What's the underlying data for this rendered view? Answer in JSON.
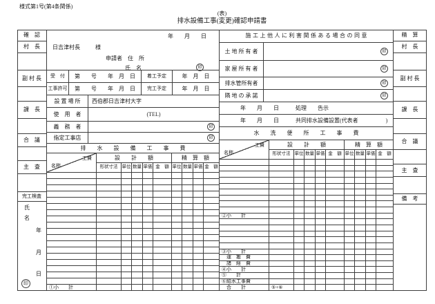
{
  "page": {
    "form_number": "様式第1号(第4条関係)",
    "side_label": "(表)",
    "title": "排水設備工事(変更)確認申請書"
  },
  "seals": {
    "glyph": "印"
  },
  "approval_left": {
    "header": "確　認",
    "mayor": "村　長",
    "deputy_mayor": "副 村 長",
    "section_chief": "課　長",
    "council": "合　議",
    "examiner": "主　査",
    "completion_label": "完工検査",
    "name_char_1": "氏",
    "name_char_2": "名",
    "year": "年",
    "month": "月",
    "day": "日"
  },
  "approval_right": {
    "header": "精　算",
    "mayor": "村　長",
    "deputy_mayor": "副 村 長",
    "section_chief": "課　長",
    "council": "合　議",
    "examiner": "主　査",
    "remarks": "備　考"
  },
  "application": {
    "date": "年　　月　　日",
    "addressee": "日吉津村長",
    "honorific": "様",
    "applicant_line": "申請者　住　所",
    "name_line": "氏　名"
  },
  "reception": {
    "receipt_label": "受　付",
    "permit_label": "工事許可",
    "number_line": "第　　号　　年　月　日",
    "start_label": "着工予定",
    "finish_label": "完工予定",
    "date": "年　月　日"
  },
  "site": {
    "location_label": "設 置 場 所",
    "location_value": "西伯郡日吉津村大字",
    "user_label": "使　用　者",
    "tel": "(TEL)",
    "obligor_label": "義　務　者",
    "contractor_label": "指定工事店"
  },
  "consent": {
    "header": "施工上他人に利害関係ある場合の同意",
    "land_owner": "土 地 所 有 者",
    "house_owner": "家 屋 所 有 者",
    "pipe_owner": "排水管所有者",
    "neighbor": "隣 地 の 承 諾",
    "processing_line": "年　　月　　日　　　処理　　告示",
    "joint_line": "年　　月　　日　　　共同排水設備設置(代表者　　　　　)"
  },
  "fee_headers": {
    "corner_top": "工費",
    "corner_bottom": "名称",
    "design": "設　　計　　額",
    "settlement": "精　算　額",
    "subs": [
      "形状寸法",
      "単位",
      "数量",
      "単価",
      "金　額",
      "単位",
      "数量",
      "単価",
      "金　額"
    ]
  },
  "drainage_table": {
    "title": "排　　水　　設　　備　　工　　事　　費",
    "row_labels": {
      "18": "①小　　計"
    }
  },
  "toilet_table": {
    "title": "水　　洗　　便　　所　　工　　事　　費",
    "row_labels": {
      "9": "②小　　計",
      "15": "③小　　計",
      "16": "　運　搬　費",
      "17": "　諸　経　費",
      "18": "④小　　計",
      "19": "⑤　　計",
      "20": "⑥給水工事費",
      "21": "　合　　計"
    },
    "formula_cells": {
      "21": "⑤+⑥"
    }
  }
}
